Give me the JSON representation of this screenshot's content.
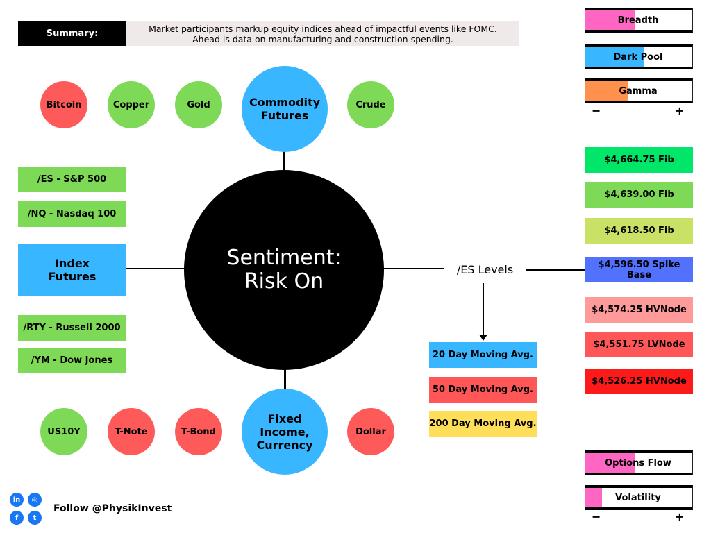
{
  "summary": {
    "label": "Summary:",
    "text": "Market participants markup equity indices ahead of impactful events like FOMC. Ahead is data on manufacturing and construction spending."
  },
  "center": {
    "line1": "Sentiment:",
    "line2": "Risk On"
  },
  "commodities": {
    "hub": "Commodity Futures",
    "items": [
      {
        "label": "Bitcoin",
        "color": "#ff5a5a"
      },
      {
        "label": "Copper",
        "color": "#7ed957"
      },
      {
        "label": "Gold",
        "color": "#7ed957"
      },
      {
        "label": "Crude",
        "color": "#7ed957"
      }
    ]
  },
  "fixed_income": {
    "hub": "Fixed Income, Currency",
    "items": [
      {
        "label": "US10Y",
        "color": "#7ed957"
      },
      {
        "label": "T-Note",
        "color": "#ff5a5a"
      },
      {
        "label": "T-Bond",
        "color": "#ff5a5a"
      },
      {
        "label": "Dollar",
        "color": "#ff5a5a"
      }
    ]
  },
  "index_futures": {
    "hub": "Index Futures",
    "items": [
      "/ES - S&P 500",
      "/NQ - Nasdaq 100",
      "/RTY - Russell 2000",
      "/YM - Dow Jones"
    ]
  },
  "es_levels": {
    "label": "/ES Levels",
    "levels": [
      {
        "label": "$4,664.75 Fib",
        "color": "#00e668"
      },
      {
        "label": "$4,639.00 Fib",
        "color": "#7ed957"
      },
      {
        "label": "$4,618.50 Fib",
        "color": "#c9e265"
      },
      {
        "label": "$4,596.50 Spike Base",
        "color": "#5271ff"
      },
      {
        "label": "$4,574.25 HVNode",
        "color": "#ff9a9a"
      },
      {
        "label": "$4,551.75 LVNode",
        "color": "#ff5757"
      },
      {
        "label": "$4,526.25 HVNode",
        "color": "#ff1a1a"
      }
    ]
  },
  "moving_averages": [
    {
      "label": "20 Day Moving Avg.",
      "color": "#38b6ff"
    },
    {
      "label": "50 Day Moving Avg.",
      "color": "#ff5757"
    },
    {
      "label": "200 Day Moving Avg.",
      "color": "#ffde59"
    }
  ],
  "gauges_top": [
    {
      "label": "Breadth",
      "percent": 47,
      "color": "#ff66c4"
    },
    {
      "label": "Dark Pool",
      "percent": 56,
      "color": "#38b6ff"
    },
    {
      "label": "Gamma",
      "percent": 40,
      "color": "#ff914d"
    }
  ],
  "gauges_bottom": [
    {
      "label": "Options Flow",
      "percent": 47,
      "color": "#ff66c4"
    },
    {
      "label": "Volatility",
      "percent": 16,
      "color": "#ff66c4"
    }
  ],
  "scale": {
    "minus": "−",
    "plus": "+"
  },
  "footer": {
    "follow": "Follow @PhysikInvest",
    "icons": [
      "linkedin-icon",
      "instagram-icon",
      "facebook-icon",
      "twitter-icon"
    ]
  }
}
